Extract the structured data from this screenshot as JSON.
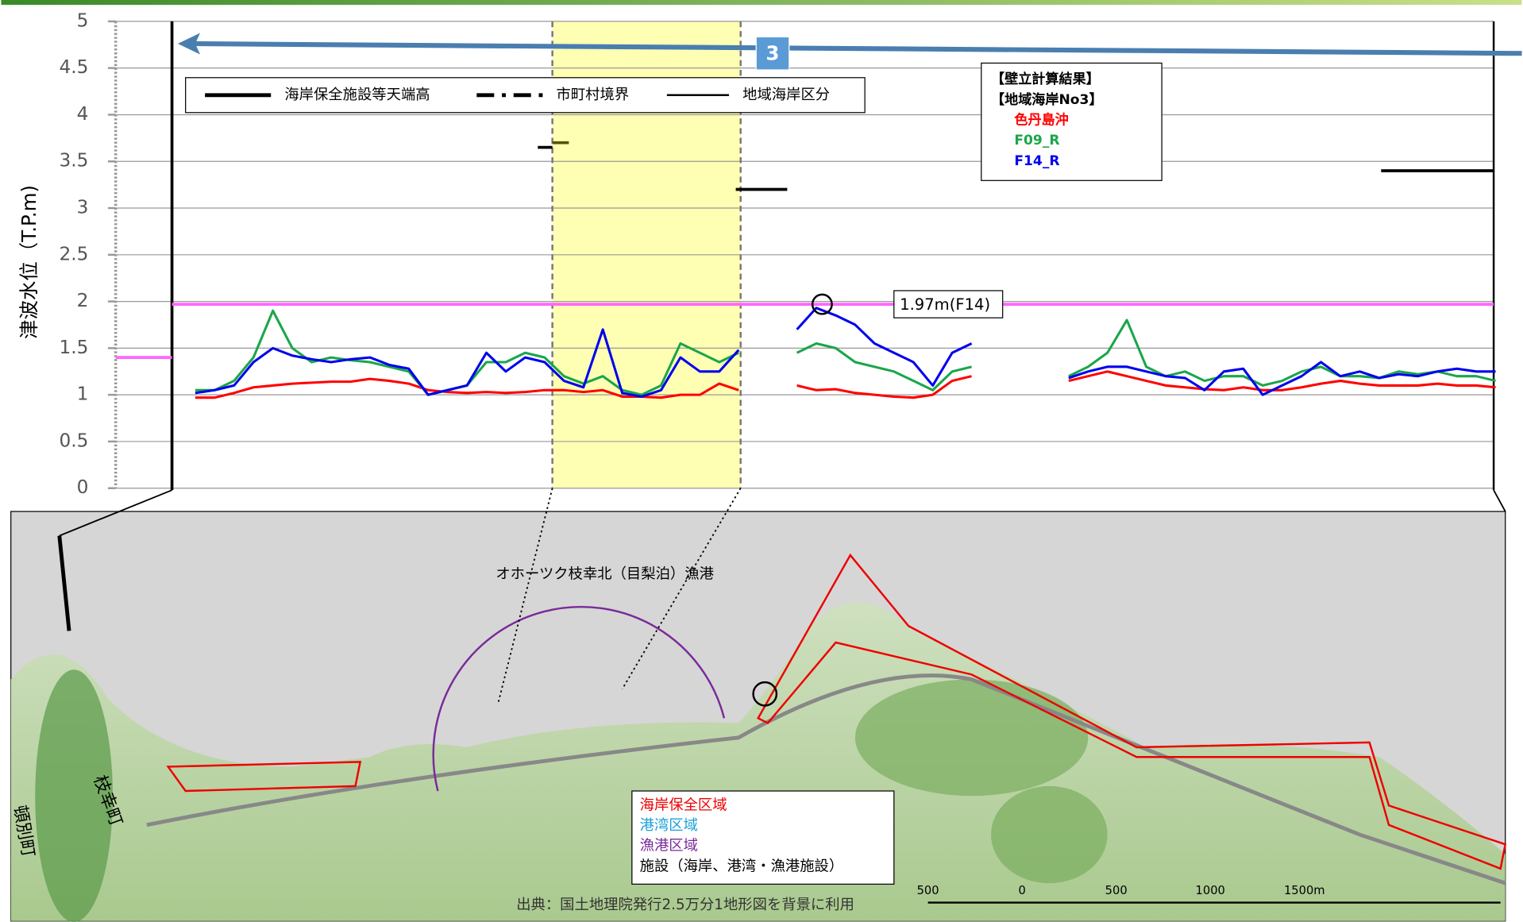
{
  "chart_data": {
    "type": "line",
    "y_label": "津波水位（T.P.m)",
    "ylim": [
      0,
      5
    ],
    "yticks": [
      0,
      0.5,
      1,
      1.5,
      2,
      2.5,
      3,
      3.5,
      4,
      4.5,
      5
    ],
    "grid": true,
    "categories": [
      null,
      null,
      null,
      null,
      null,
      null,
      null,
      null,
      null,
      null,
      null,
      null,
      null,
      null,
      null,
      null,
      null,
      null,
      null,
      null,
      null,
      null,
      null,
      null,
      null,
      null,
      null,
      null,
      null,
      null,
      null,
      null,
      null,
      null,
      null,
      null,
      null,
      null,
      null,
      null,
      null,
      null,
      null,
      null,
      null,
      null,
      null,
      null,
      null,
      null,
      null,
      null,
      null,
      null,
      null,
      null,
      null,
      null,
      null,
      null,
      null,
      null,
      null,
      null,
      null,
      null,
      null,
      null
    ],
    "series": [
      {
        "name": "色丹島沖",
        "color": "#ff0000",
        "values": [
          0.97,
          0.97,
          1.02,
          1.08,
          1.1,
          1.12,
          1.13,
          1.14,
          1.14,
          1.17,
          1.15,
          1.12,
          1.05,
          1.03,
          1.02,
          1.03,
          1.02,
          1.03,
          1.05,
          1.05,
          1.03,
          1.05,
          0.98,
          0.98,
          0.97,
          1.0,
          1.0,
          1.12,
          1.05,
          null,
          null,
          1.1,
          1.05,
          1.06,
          1.02,
          1.0,
          0.98,
          0.97,
          1.0,
          1.15,
          1.2,
          null,
          null,
          null,
          null,
          1.15,
          1.2,
          1.25,
          1.2,
          1.15,
          1.1,
          1.08,
          1.06,
          1.05,
          1.08,
          1.05,
          1.05,
          1.08,
          1.12,
          1.15,
          1.12,
          1.1,
          1.1,
          1.1,
          1.12,
          1.1,
          1.1,
          1.08
        ]
      },
      {
        "name": "F09_R",
        "color": "#1aa64a",
        "values": [
          1.05,
          1.05,
          1.15,
          1.4,
          1.9,
          1.5,
          1.35,
          1.4,
          1.37,
          1.35,
          1.3,
          1.25,
          1.0,
          1.05,
          1.1,
          1.35,
          1.35,
          1.45,
          1.4,
          1.2,
          1.12,
          1.2,
          1.05,
          1.0,
          1.1,
          1.55,
          1.45,
          1.35,
          1.45,
          null,
          null,
          1.45,
          1.55,
          1.5,
          1.35,
          1.3,
          1.25,
          1.15,
          1.05,
          1.25,
          1.3,
          null,
          null,
          null,
          null,
          1.2,
          1.3,
          1.45,
          1.8,
          1.3,
          1.2,
          1.25,
          1.15,
          1.2,
          1.2,
          1.1,
          1.15,
          1.25,
          1.3,
          1.2,
          1.2,
          1.18,
          1.25,
          1.22,
          1.25,
          1.2,
          1.2,
          1.15
        ]
      },
      {
        "name": "F14_R",
        "color": "#0000ee",
        "values": [
          1.02,
          1.05,
          1.1,
          1.35,
          1.5,
          1.42,
          1.38,
          1.35,
          1.38,
          1.4,
          1.32,
          1.28,
          1.0,
          1.05,
          1.1,
          1.45,
          1.25,
          1.4,
          1.35,
          1.15,
          1.08,
          1.7,
          1.02,
          0.98,
          1.05,
          1.4,
          1.25,
          1.25,
          1.48,
          null,
          null,
          1.7,
          1.93,
          1.85,
          1.75,
          1.55,
          1.45,
          1.35,
          1.1,
          1.45,
          1.55,
          null,
          null,
          null,
          null,
          1.18,
          1.25,
          1.3,
          1.3,
          1.25,
          1.2,
          1.18,
          1.05,
          1.25,
          1.28,
          1.0,
          1.1,
          1.2,
          1.35,
          1.2,
          1.25,
          1.18,
          1.22,
          1.2,
          1.25,
          1.28,
          1.25,
          1.25
        ]
      }
    ],
    "max_level": 1.97,
    "max_label": "1.97m(F14)",
    "left_level": 1.4,
    "crest_heights": [
      3.65,
      3.7,
      3.2,
      3.4
    ],
    "legend_items": [
      "海岸保全施設等天端高",
      "市町村境界",
      "地域海岸区分"
    ],
    "result_title": "【壁立計算結果】",
    "result_subtitle": "【地域海岸No3】",
    "region_number": "3"
  },
  "map": {
    "port_name": "オホーツク枝幸北（目梨泊）漁港",
    "legend": [
      "海岸保全区域",
      "港湾区域",
      "漁港区域",
      "施設（海岸、港湾・漁港施設）"
    ],
    "towns": [
      "枝幸町",
      "頓別町"
    ],
    "scale_labels": [
      "500",
      "0",
      "500",
      "1000",
      "1500m"
    ],
    "source": "出典：国土地理院発行2.5万分1地形図を背景に利用"
  }
}
